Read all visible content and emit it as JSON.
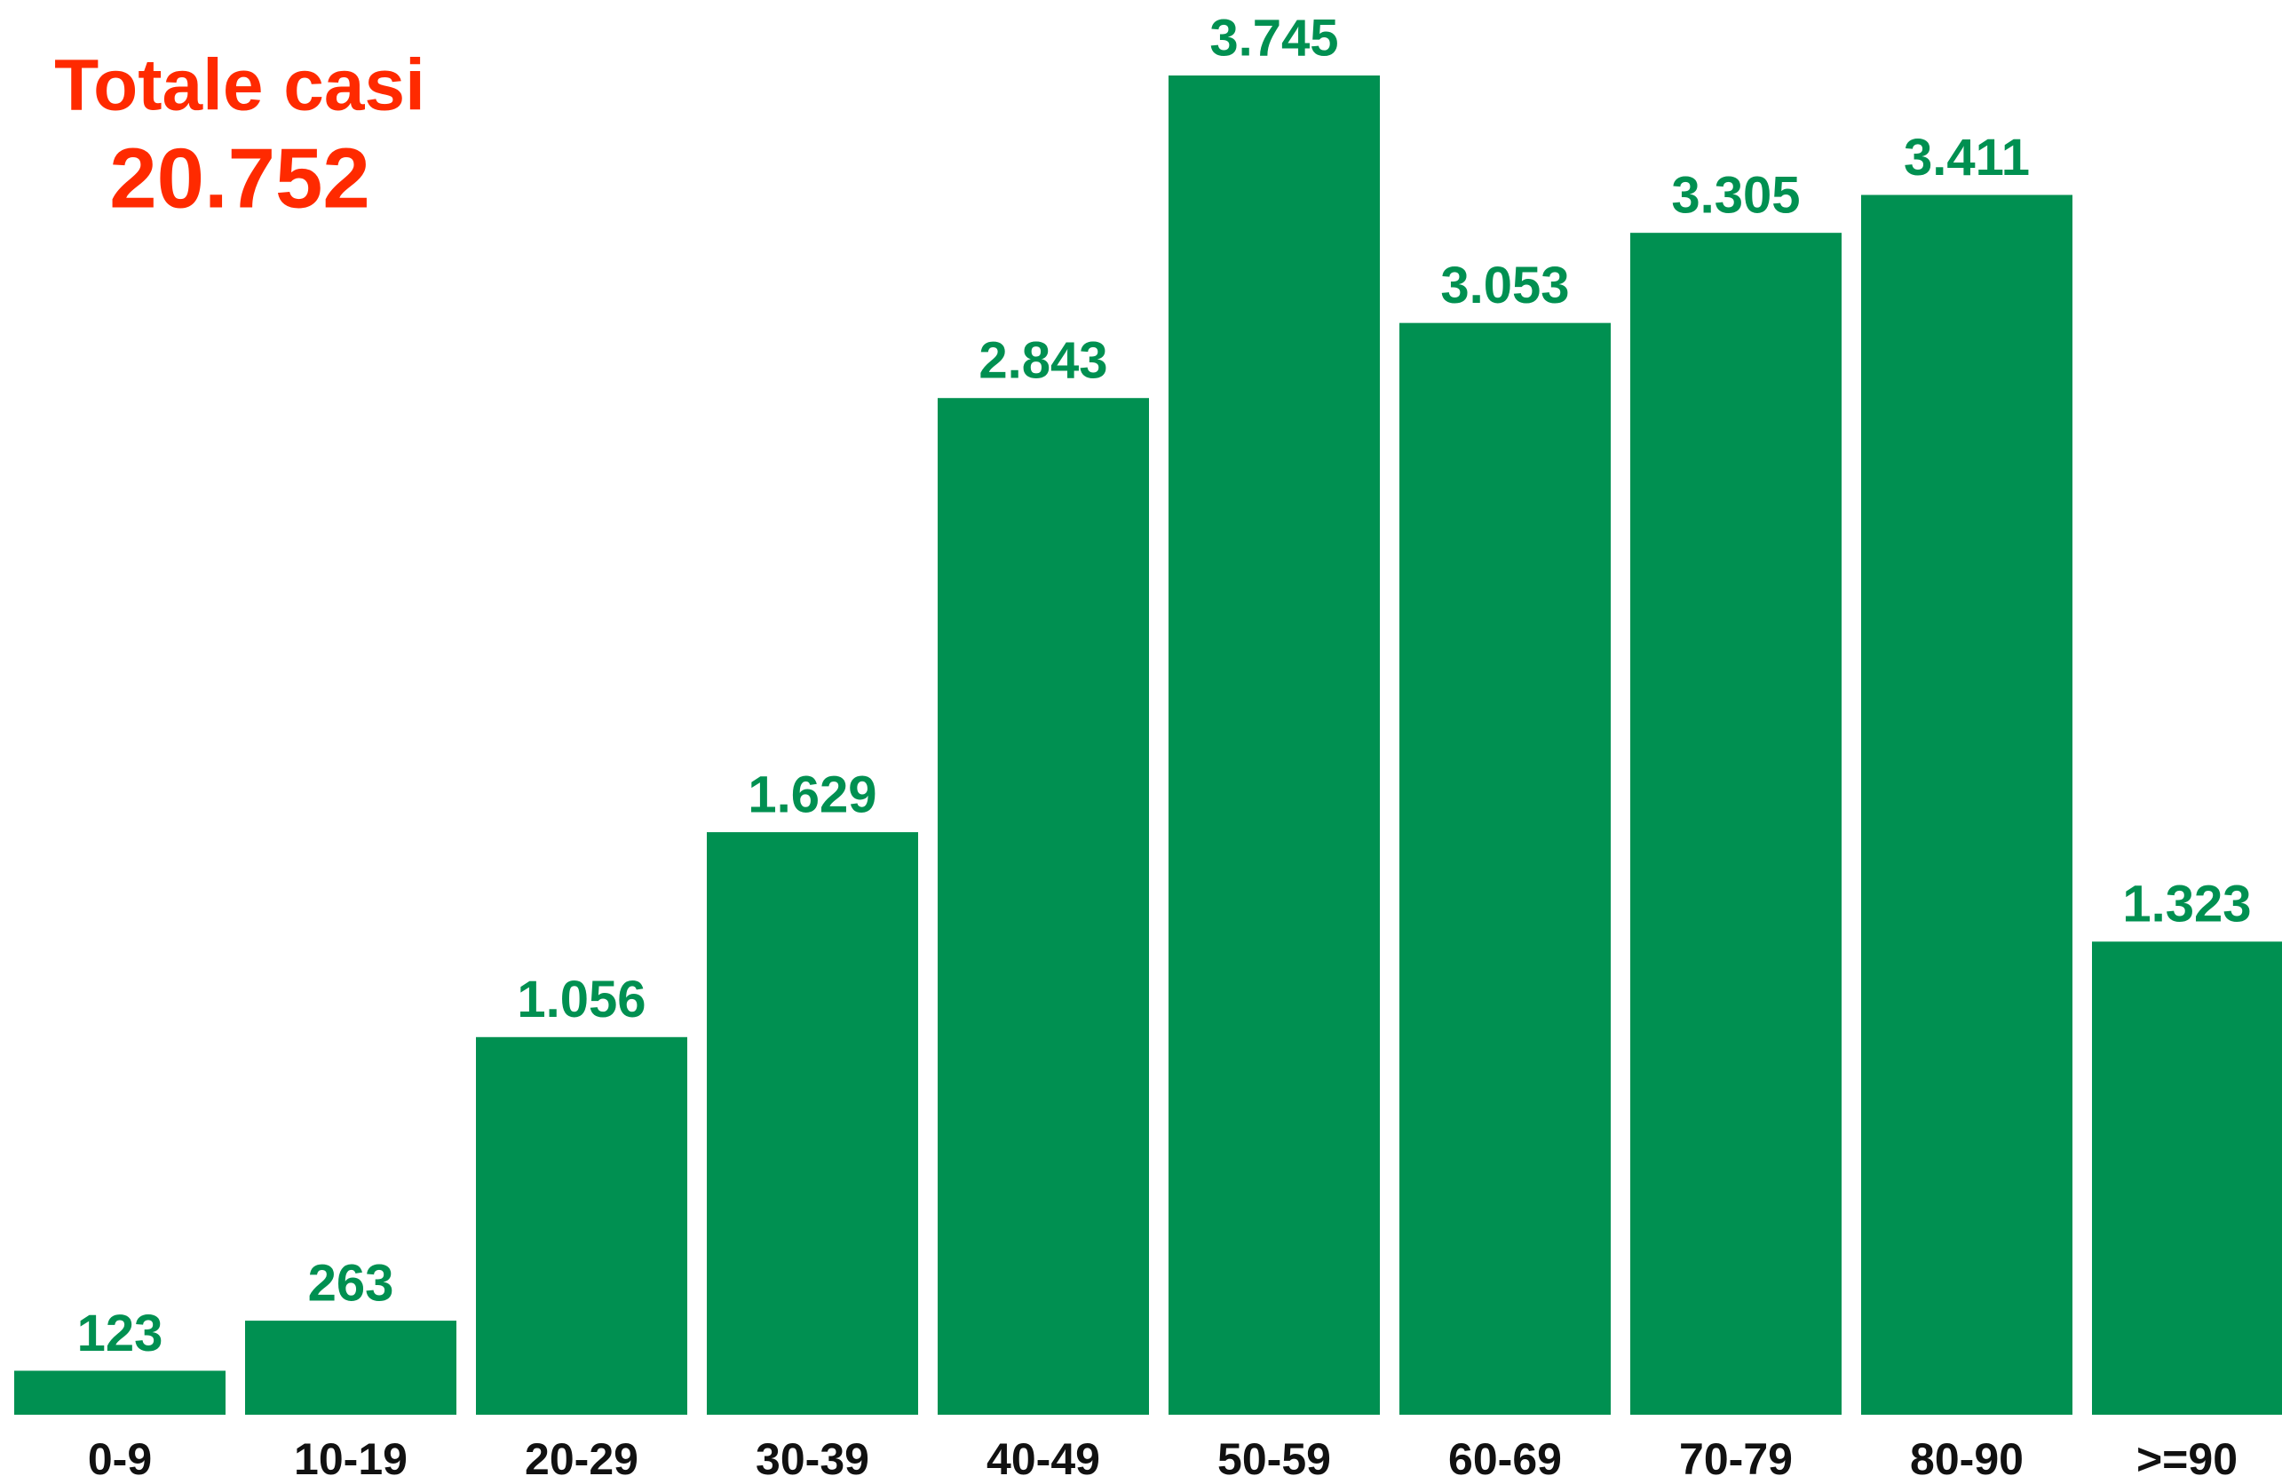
{
  "chart_data": {
    "type": "bar",
    "title": "Totale casi",
    "subtitle": "20.752",
    "categories": [
      "0-9",
      "10-19",
      "20-29",
      "30-39",
      "40-49",
      "50-59",
      "60-69",
      "70-79",
      "80-90",
      ">=90"
    ],
    "values": [
      123,
      263,
      1056,
      1629,
      2843,
      3745,
      3053,
      3305,
      3411,
      1323
    ],
    "value_labels": [
      "123",
      "263",
      "1.056",
      "1.629",
      "2.843",
      "3.745",
      "3.053",
      "3.305",
      "3.411",
      "1.323"
    ],
    "color": "#009051"
  }
}
